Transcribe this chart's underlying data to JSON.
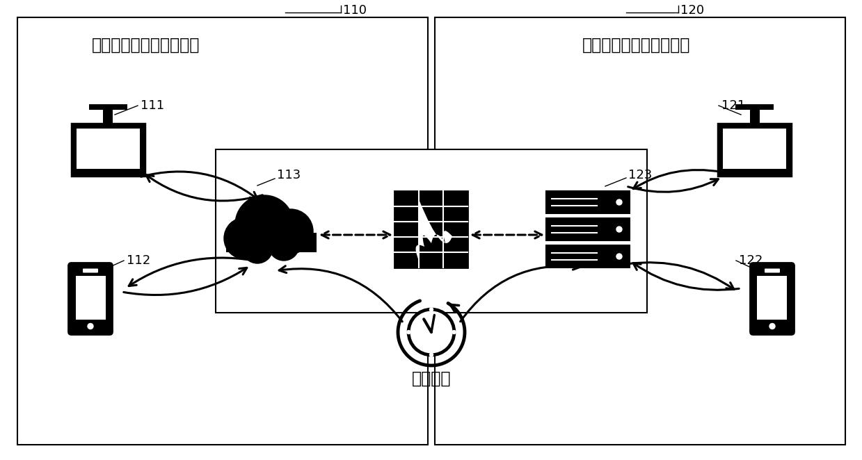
{
  "left_box_label": "面向外网用户的应用场景",
  "right_box_label": "面向内网用户的应用场景",
  "sync_label": "同步机制",
  "label_110": "110",
  "label_120": "120",
  "label_111": "111",
  "label_112": "112",
  "label_113": "113",
  "label_121": "121",
  "label_122": "122",
  "label_123": "123",
  "bg_color": "#ffffff",
  "box_color": "#000000",
  "text_color": "#000000"
}
